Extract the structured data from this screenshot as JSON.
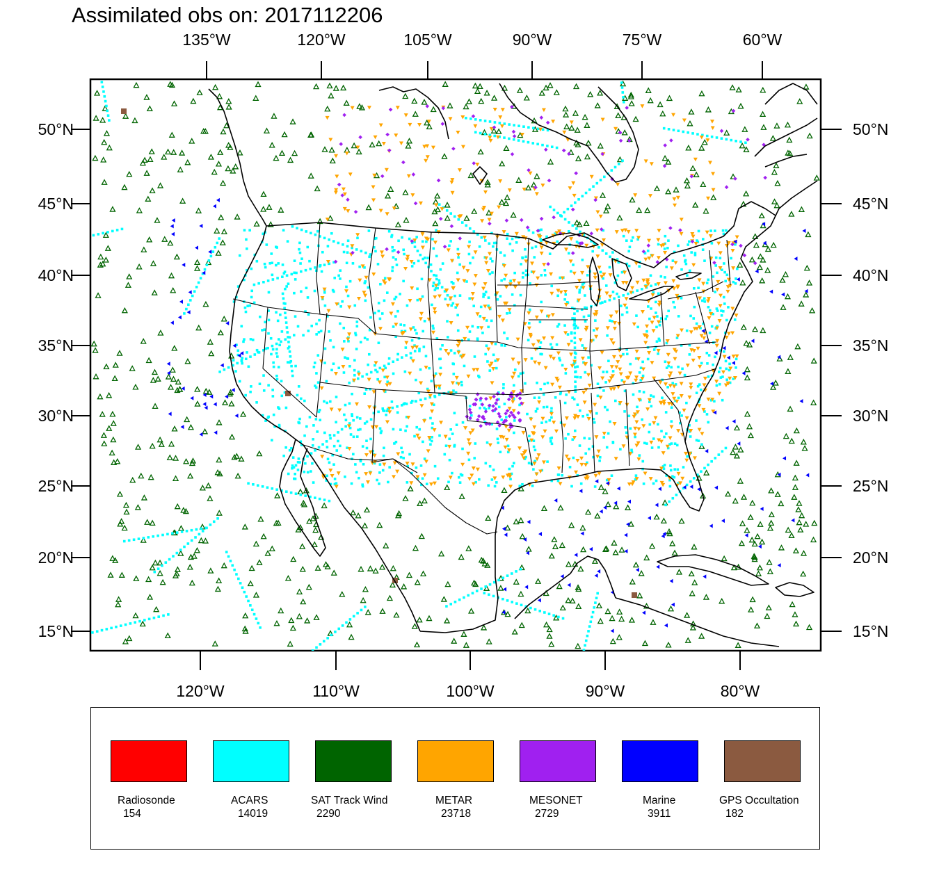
{
  "title": "Assimilated obs on: 2017112206",
  "top_lon_labels": [
    "135°W",
    "120°W",
    "105°W",
    "90°W",
    "75°W",
    "60°W"
  ],
  "bottom_lon_labels": [
    "120°W",
    "110°W",
    "100°W",
    "90°W",
    "80°W"
  ],
  "left_lat_labels": [
    "50°N",
    "45°N",
    "40°N",
    "35°N",
    "30°N",
    "25°N",
    "20°N",
    "15°N"
  ],
  "right_lat_labels": [
    "50°N",
    "45°N",
    "40°N",
    "35°N",
    "30°N",
    "25°N",
    "20°N",
    "15°N"
  ],
  "colors": {
    "land_outline": "#000000",
    "radiosonde": "#ff0000",
    "acars": "#00ffff",
    "sat_track_wind": "#006400",
    "metar": "#ffa500",
    "mesonet": "#a020f0",
    "marine": "#0000ff",
    "gps_occultation": "#8b5a40"
  },
  "legend": [
    {
      "name": "Radiosonde",
      "count": "154",
      "color": "#ff0000"
    },
    {
      "name": "ACARS",
      "count": "14019",
      "color": "#00ffff"
    },
    {
      "name": "SAT Track Wind",
      "count": "2290",
      "color": "#006400"
    },
    {
      "name": "METAR",
      "count": "23718",
      "color": "#ffa500"
    },
    {
      "name": "MESONET",
      "count": "2729",
      "color": "#a020f0"
    },
    {
      "name": "Marine",
      "count": "3911",
      "color": "#0000ff"
    },
    {
      "name": "GPS Occultation",
      "count": "182",
      "color": "#8b5a40"
    }
  ]
}
